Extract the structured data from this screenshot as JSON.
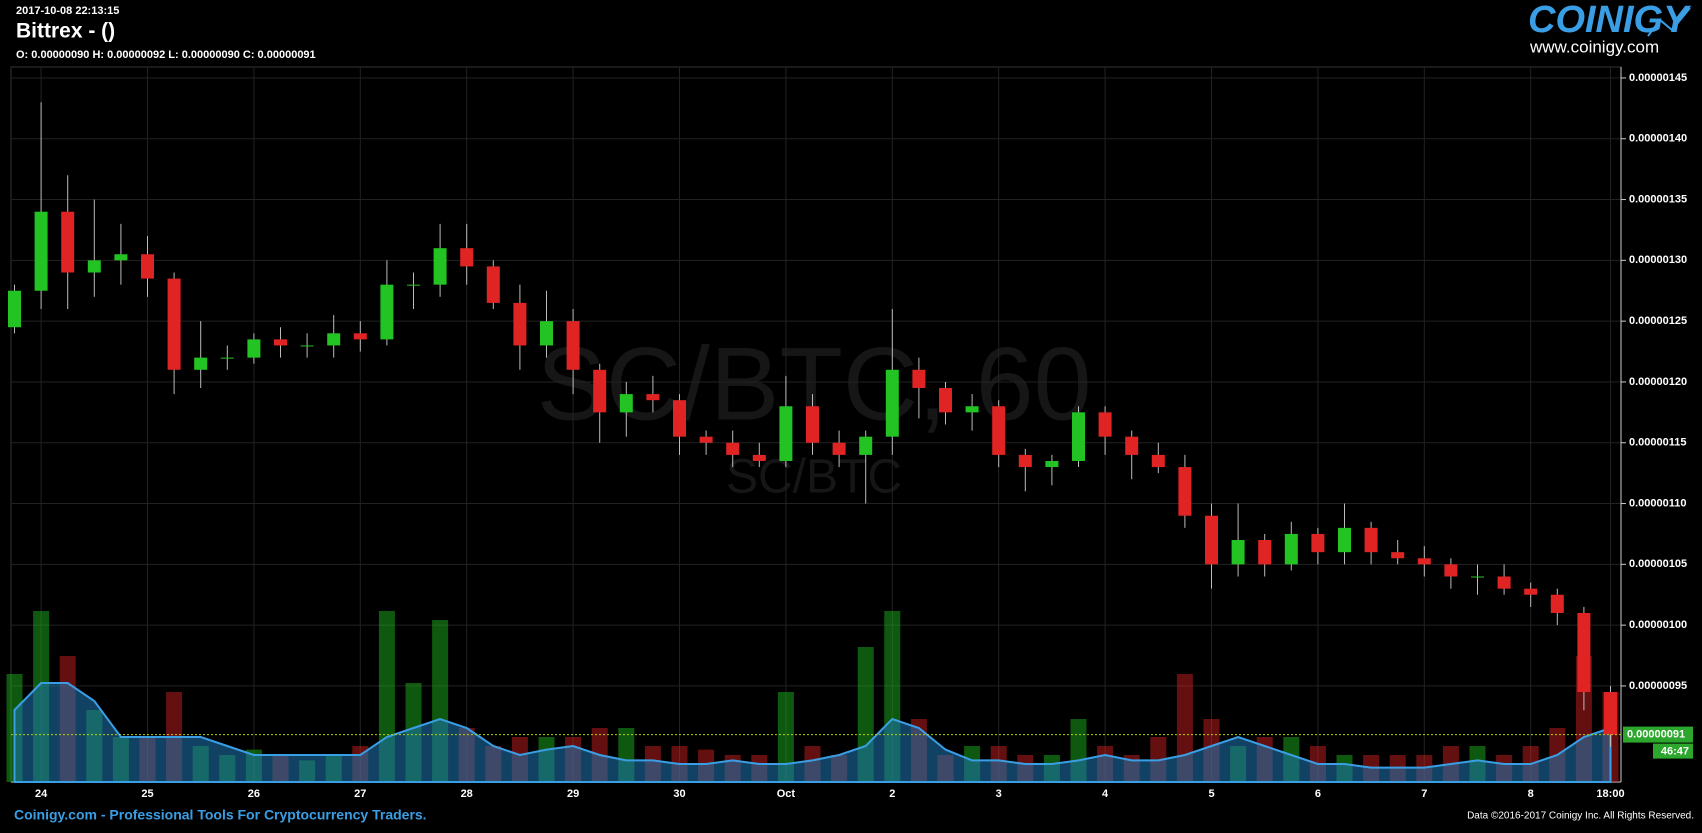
{
  "chart_data": {
    "type": "candlestick",
    "timestamp": "2017-10-08 22:13:15",
    "title": "Bittrex -  ()",
    "ohlc_text": "O: 0.00000090 H: 0.00000092 L: 0.00000090 C: 0.00000091",
    "watermark": "SC/BTC, 60",
    "watermark_sub": "SC/BTC",
    "logo": "COINIGY",
    "logo_url": "www.coinigy.com",
    "footer_left": "Coinigy.com - Professional Tools For Cryptocurrency Traders.",
    "footer_right": "Data ©2016-2017 Coinigy Inc. All Rights Reserved.",
    "countdown": "46:47",
    "last_price": {
      "value": 9.1e-07,
      "label": "0.00000091"
    },
    "up_color": "#22c322",
    "down_color": "#e02424",
    "volume_avg_color": "#1f78b4",
    "grid": true,
    "categories": [
      null,
      "24",
      null,
      null,
      null,
      "25",
      null,
      null,
      null,
      "26",
      null,
      null,
      null,
      "27",
      null,
      null,
      null,
      "28",
      null,
      null,
      null,
      "29",
      null,
      null,
      null,
      "30",
      null,
      null,
      null,
      "Oct",
      null,
      null,
      null,
      "2",
      null,
      null,
      null,
      "3",
      null,
      null,
      null,
      "4",
      null,
      null,
      null,
      "5",
      null,
      null,
      null,
      "6",
      null,
      null,
      null,
      "7",
      null,
      null,
      null,
      "8",
      null,
      null,
      "18:00"
    ],
    "open": [
      1.245e-06,
      1.275e-06,
      1.34e-06,
      1.29e-06,
      1.3e-06,
      1.305e-06,
      1.285e-06,
      1.21e-06,
      1.22e-06,
      1.22e-06,
      1.235e-06,
      1.23e-06,
      1.23e-06,
      1.24e-06,
      1.235e-06,
      1.28e-06,
      1.28e-06,
      1.31e-06,
      1.295e-06,
      1.265e-06,
      1.23e-06,
      1.25e-06,
      1.21e-06,
      1.175e-06,
      1.19e-06,
      1.185e-06,
      1.155e-06,
      1.15e-06,
      1.14e-06,
      1.135e-06,
      1.18e-06,
      1.15e-06,
      1.14e-06,
      1.155e-06,
      1.21e-06,
      1.195e-06,
      1.175e-06,
      1.18e-06,
      1.14e-06,
      1.13e-06,
      1.135e-06,
      1.175e-06,
      1.155e-06,
      1.14e-06,
      1.13e-06,
      1.09e-06,
      1.05e-06,
      1.07e-06,
      1.05e-06,
      1.075e-06,
      1.06e-06,
      1.08e-06,
      1.06e-06,
      1.055e-06,
      1.05e-06,
      1.04e-06,
      1.04e-06,
      1.03e-06,
      1.025e-06,
      1.01e-06,
      9.45e-07
    ],
    "high": [
      1.28e-06,
      1.43e-06,
      1.37e-06,
      1.35e-06,
      1.33e-06,
      1.32e-06,
      1.29e-06,
      1.25e-06,
      1.23e-06,
      1.24e-06,
      1.245e-06,
      1.24e-06,
      1.255e-06,
      1.25e-06,
      1.3e-06,
      1.29e-06,
      1.33e-06,
      1.33e-06,
      1.3e-06,
      1.28e-06,
      1.275e-06,
      1.26e-06,
      1.215e-06,
      1.2e-06,
      1.205e-06,
      1.19e-06,
      1.16e-06,
      1.16e-06,
      1.15e-06,
      1.205e-06,
      1.19e-06,
      1.16e-06,
      1.16e-06,
      1.26e-06,
      1.22e-06,
      1.2e-06,
      1.19e-06,
      1.185e-06,
      1.145e-06,
      1.14e-06,
      1.18e-06,
      1.18e-06,
      1.16e-06,
      1.15e-06,
      1.14e-06,
      1.1e-06,
      1.1e-06,
      1.075e-06,
      1.085e-06,
      1.08e-06,
      1.1e-06,
      1.085e-06,
      1.07e-06,
      1.065e-06,
      1.055e-06,
      1.05e-06,
      1.05e-06,
      1.035e-06,
      1.03e-06,
      1.015e-06,
      9.5e-07
    ],
    "low": [
      1.24e-06,
      1.26e-06,
      1.26e-06,
      1.27e-06,
      1.28e-06,
      1.27e-06,
      1.19e-06,
      1.195e-06,
      1.21e-06,
      1.215e-06,
      1.22e-06,
      1.22e-06,
      1.22e-06,
      1.225e-06,
      1.23e-06,
      1.26e-06,
      1.27e-06,
      1.28e-06,
      1.26e-06,
      1.21e-06,
      1.22e-06,
      1.19e-06,
      1.15e-06,
      1.155e-06,
      1.175e-06,
      1.14e-06,
      1.14e-06,
      1.13e-06,
      1.13e-06,
      1.13e-06,
      1.14e-06,
      1.13e-06,
      1.1e-06,
      1.14e-06,
      1.17e-06,
      1.165e-06,
      1.16e-06,
      1.13e-06,
      1.11e-06,
      1.115e-06,
      1.13e-06,
      1.14e-06,
      1.12e-06,
      1.125e-06,
      1.08e-06,
      1.03e-06,
      1.04e-06,
      1.04e-06,
      1.045e-06,
      1.05e-06,
      1.05e-06,
      1.05e-06,
      1.05e-06,
      1.04e-06,
      1.03e-06,
      1.025e-06,
      1.025e-06,
      1.015e-06,
      1e-06,
      9.3e-07,
      9e-07
    ],
    "close": [
      1.275e-06,
      1.34e-06,
      1.29e-06,
      1.3e-06,
      1.305e-06,
      1.285e-06,
      1.21e-06,
      1.22e-06,
      1.22e-06,
      1.235e-06,
      1.23e-06,
      1.23e-06,
      1.24e-06,
      1.235e-06,
      1.28e-06,
      1.28e-06,
      1.31e-06,
      1.295e-06,
      1.265e-06,
      1.23e-06,
      1.25e-06,
      1.21e-06,
      1.175e-06,
      1.19e-06,
      1.185e-06,
      1.155e-06,
      1.15e-06,
      1.14e-06,
      1.135e-06,
      1.18e-06,
      1.15e-06,
      1.14e-06,
      1.155e-06,
      1.21e-06,
      1.195e-06,
      1.175e-06,
      1.18e-06,
      1.14e-06,
      1.13e-06,
      1.135e-06,
      1.175e-06,
      1.155e-06,
      1.14e-06,
      1.13e-06,
      1.09e-06,
      1.05e-06,
      1.07e-06,
      1.05e-06,
      1.075e-06,
      1.06e-06,
      1.08e-06,
      1.06e-06,
      1.055e-06,
      1.05e-06,
      1.04e-06,
      1.04e-06,
      1.03e-06,
      1.025e-06,
      1.01e-06,
      9.45e-07,
      9.1e-07
    ],
    "volume": [
      60,
      95,
      70,
      40,
      25,
      25,
      50,
      20,
      15,
      18,
      15,
      12,
      15,
      20,
      95,
      55,
      90,
      30,
      20,
      25,
      25,
      25,
      30,
      30,
      20,
      20,
      18,
      15,
      15,
      50,
      20,
      15,
      75,
      95,
      35,
      15,
      20,
      20,
      15,
      15,
      35,
      20,
      15,
      25,
      60,
      35,
      20,
      25,
      25,
      20,
      15,
      15,
      15,
      15,
      20,
      20,
      15,
      20,
      30,
      70,
      50
    ],
    "volume_avg": [
      40,
      55,
      55,
      45,
      25,
      25,
      25,
      25,
      20,
      15,
      15,
      15,
      15,
      15,
      25,
      30,
      35,
      30,
      20,
      15,
      18,
      20,
      15,
      12,
      12,
      10,
      10,
      12,
      10,
      10,
      12,
      15,
      20,
      35,
      30,
      18,
      12,
      12,
      10,
      10,
      12,
      15,
      12,
      12,
      15,
      20,
      25,
      20,
      15,
      10,
      10,
      8,
      8,
      8,
      10,
      12,
      10,
      10,
      15,
      25,
      30
    ],
    "vlim": [
      0,
      100
    ],
    "ylim": [
      8.71e-07,
      1.459e-06
    ],
    "yticks": [
      {
        "value": 9.5e-07,
        "label": "0.00000095"
      },
      {
        "value": 1e-06,
        "label": "0.00000100"
      },
      {
        "value": 1.05e-06,
        "label": "0.00000105"
      },
      {
        "value": 1.1e-06,
        "label": "0.00000110"
      },
      {
        "value": 1.15e-06,
        "label": "0.00000115"
      },
      {
        "value": 1.2e-06,
        "label": "0.00000120"
      },
      {
        "value": 1.25e-06,
        "label": "0.00000125"
      },
      {
        "value": 1.3e-06,
        "label": "0.00000130"
      },
      {
        "value": 1.35e-06,
        "label": "0.00000135"
      },
      {
        "value": 1.4e-06,
        "label": "0.00000140"
      },
      {
        "value": 1.45e-06,
        "label": "0.00000145"
      }
    ]
  }
}
